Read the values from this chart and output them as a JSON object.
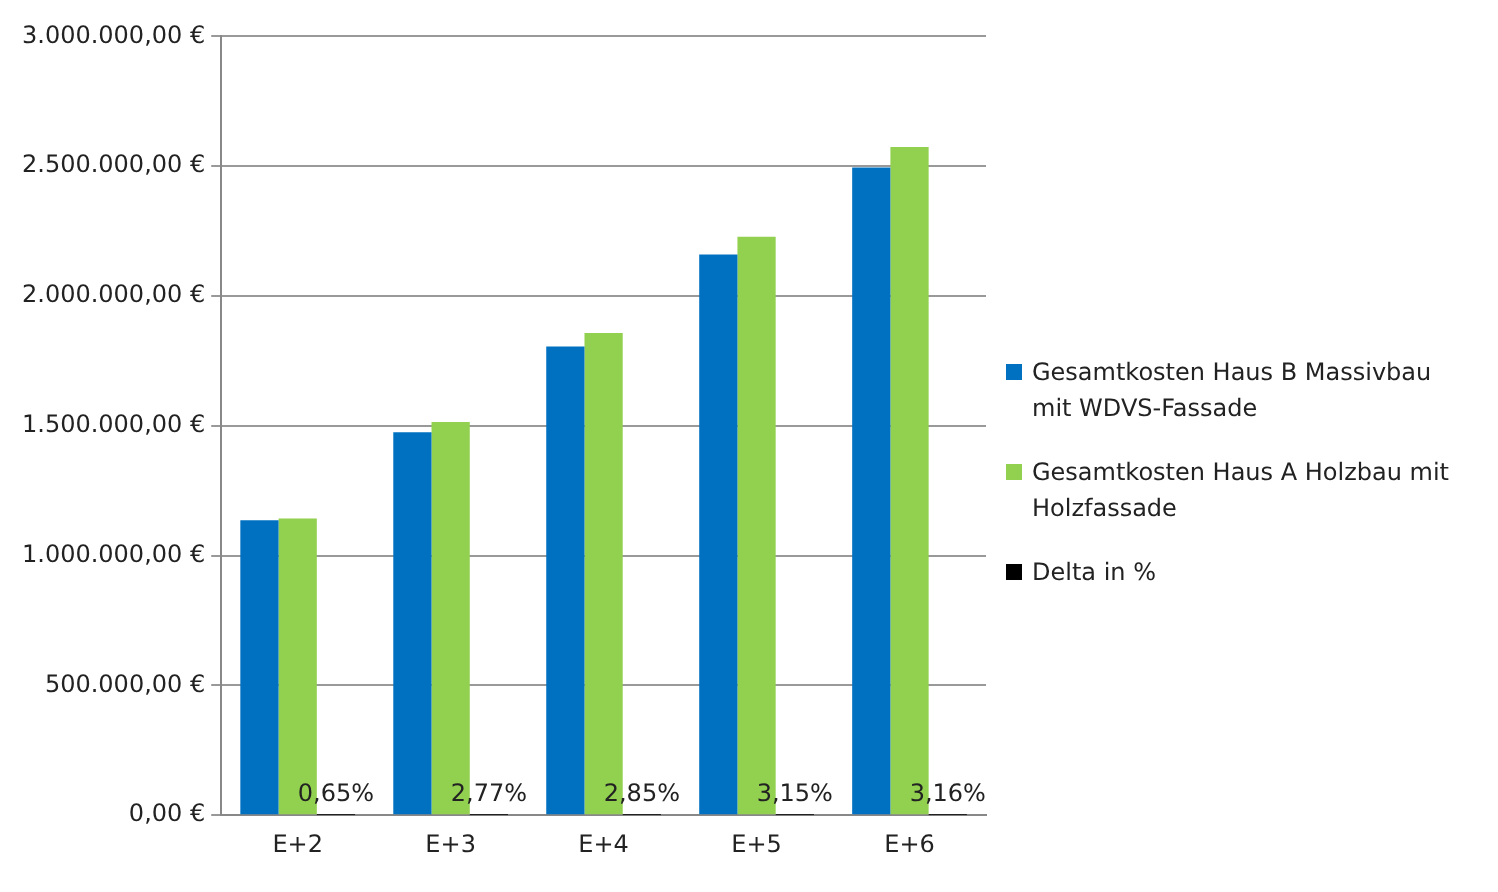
{
  "chart_data": {
    "type": "bar",
    "categories": [
      "E+2",
      "E+3",
      "E+4",
      "E+5",
      "E+6"
    ],
    "series": [
      {
        "name": "Gesamtkosten Haus B Massivbau mit WDVS-Fassade",
        "color": "#0070c0",
        "values": [
          1136000,
          1475000,
          1805000,
          2160000,
          2495000
        ]
      },
      {
        "name": "Gesamtkosten Haus A Holzbau mit Holzfassade",
        "color": "#92d050",
        "values": [
          1143000,
          1515000,
          1857000,
          2228000,
          2574000
        ]
      },
      {
        "name": "Delta in %",
        "color": "#000000",
        "values": [
          0.65,
          2.77,
          2.85,
          3.15,
          3.16
        ],
        "value_labels": [
          "0,65%",
          "2,77%",
          "2,85%",
          "3,15%",
          "3,16%"
        ]
      }
    ],
    "ylim": [
      0,
      3000000
    ],
    "yticks": [
      {
        "value": 0,
        "label": "0,00 €"
      },
      {
        "value": 500000,
        "label": "500.000,00 €"
      },
      {
        "value": 1000000,
        "label": "1.000.000,00 €"
      },
      {
        "value": 1500000,
        "label": "1.500.000,00 €"
      },
      {
        "value": 2000000,
        "label": "2.000.000,00 €"
      },
      {
        "value": 2500000,
        "label": "2.500.000,00 €"
      },
      {
        "value": 3000000,
        "label": "3.000.000,00 €"
      }
    ],
    "grid": "y",
    "legend": "right"
  }
}
